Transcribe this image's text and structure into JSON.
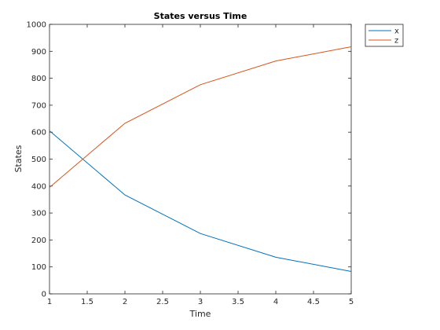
{
  "chart_data": {
    "type": "line",
    "title": "States versus Time",
    "xlabel": "Time",
    "ylabel": "States",
    "xlim": [
      1,
      5
    ],
    "ylim": [
      0,
      1000
    ],
    "x_ticks": [
      "1",
      "1.5",
      "2",
      "2.5",
      "3",
      "3.5",
      "4",
      "4.5",
      "5"
    ],
    "y_ticks": [
      "0",
      "100",
      "200",
      "300",
      "400",
      "500",
      "600",
      "700",
      "800",
      "900",
      "1000"
    ],
    "grid": false,
    "legend_position": "top-right",
    "x": [
      1,
      2,
      3,
      4,
      5
    ],
    "series": [
      {
        "name": "x",
        "color": "#0072BD",
        "values": [
          605,
          367,
          224,
          136,
          83
        ]
      },
      {
        "name": "z",
        "color": "#D95319",
        "values": [
          395,
          633,
          776,
          864,
          917
        ]
      }
    ]
  }
}
